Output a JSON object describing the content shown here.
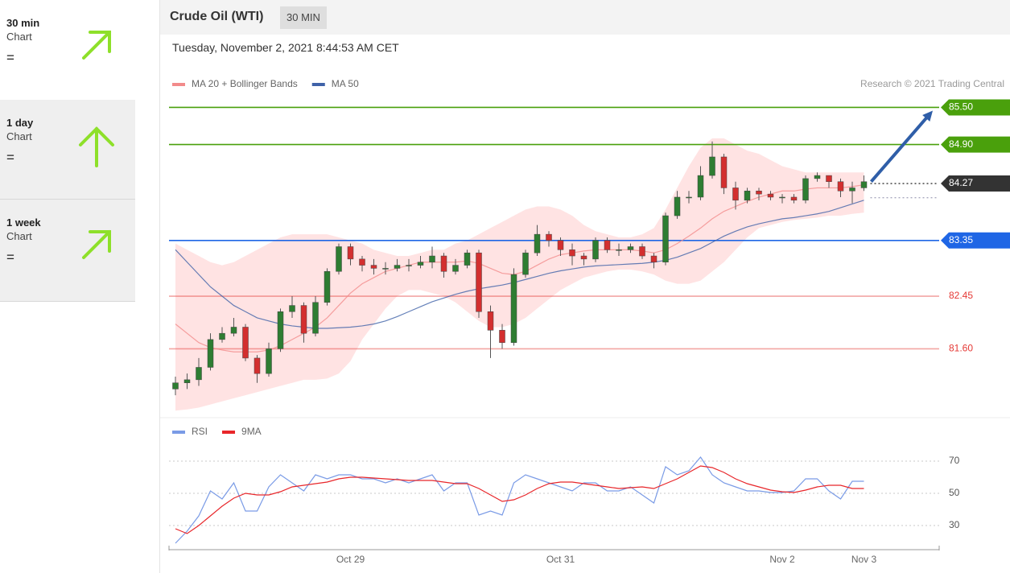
{
  "sidebar": [
    {
      "period": "30 min",
      "label": "Chart",
      "signal": "="
    },
    {
      "period": "1 day",
      "label": "Chart",
      "signal": "="
    },
    {
      "period": "1 week",
      "label": "Chart",
      "signal": "="
    }
  ],
  "header": {
    "title": "Crude Oil (WTI)",
    "interval": "30 MIN",
    "timestamp": "Tuesday, November 2, 2021 8:44:53 AM CET"
  },
  "chart_data": [
    {
      "type": "candlestick",
      "source": "Research © 2021 Trading Central",
      "up_color": "#2e7d32",
      "down_color": "#d32f2f",
      "open": [
        80.95,
        81.05,
        81.1,
        81.3,
        81.75,
        81.85,
        81.95,
        81.45,
        81.2,
        81.6,
        82.2,
        82.3,
        81.85,
        82.35,
        82.85,
        83.25,
        83.05,
        82.95,
        82.9,
        82.9,
        82.95,
        82.95,
        83.0,
        83.1,
        82.85,
        82.95,
        83.15,
        82.2,
        81.9,
        81.7,
        82.8,
        83.15,
        83.45,
        83.35,
        83.2,
        83.1,
        83.05,
        83.35,
        83.2,
        83.2,
        83.25,
        83.1,
        83.0,
        83.75,
        84.05,
        84.05,
        84.4,
        84.7,
        84.2,
        84.0,
        84.15,
        84.1,
        84.05,
        84.05,
        84.0,
        84.35,
        84.4,
        84.3,
        84.15,
        84.2
      ],
      "high": [
        81.15,
        81.2,
        81.45,
        81.85,
        81.95,
        82.1,
        82.0,
        81.5,
        81.7,
        82.25,
        82.45,
        82.35,
        82.45,
        82.9,
        83.3,
        83.3,
        83.1,
        83.05,
        83.0,
        83.05,
        83.05,
        83.1,
        83.25,
        83.15,
        83.05,
        83.2,
        83.2,
        82.3,
        82.0,
        82.9,
        83.2,
        83.6,
        83.5,
        83.4,
        83.3,
        83.15,
        83.4,
        83.4,
        83.3,
        83.3,
        83.3,
        83.15,
        83.8,
        84.15,
        84.15,
        84.55,
        84.95,
        84.75,
        84.3,
        84.2,
        84.2,
        84.15,
        84.1,
        84.1,
        84.4,
        84.45,
        84.4,
        84.35,
        84.3,
        84.4
      ],
      "low": [
        80.85,
        80.95,
        81.0,
        81.25,
        81.7,
        81.8,
        81.4,
        81.05,
        81.15,
        81.55,
        82.1,
        81.7,
        81.8,
        82.3,
        82.8,
        82.95,
        82.85,
        82.8,
        82.8,
        82.85,
        82.85,
        82.9,
        82.9,
        82.75,
        82.8,
        82.9,
        82.1,
        81.45,
        81.6,
        81.65,
        82.75,
        83.1,
        83.25,
        83.1,
        82.95,
        82.95,
        83.0,
        83.15,
        83.1,
        83.15,
        83.05,
        82.9,
        82.95,
        83.7,
        83.95,
        84.0,
        84.35,
        84.1,
        83.85,
        83.95,
        84.0,
        84.0,
        83.95,
        83.95,
        83.95,
        84.3,
        84.2,
        84.05,
        83.95,
        84.15
      ],
      "close": [
        81.05,
        81.1,
        81.3,
        81.75,
        81.85,
        81.95,
        81.45,
        81.2,
        81.6,
        82.2,
        82.3,
        81.85,
        82.35,
        82.85,
        83.25,
        83.05,
        82.95,
        82.9,
        82.9,
        82.95,
        82.95,
        83.0,
        83.1,
        82.85,
        82.95,
        83.15,
        82.2,
        81.9,
        81.7,
        82.8,
        83.15,
        83.45,
        83.35,
        83.2,
        83.1,
        83.05,
        83.35,
        83.2,
        83.2,
        83.25,
        83.1,
        83.0,
        83.75,
        84.05,
        84.05,
        84.4,
        84.7,
        84.2,
        84.0,
        84.15,
        84.1,
        84.05,
        84.05,
        84.0,
        84.35,
        84.4,
        84.3,
        84.15,
        84.2,
        84.3
      ],
      "series": [
        {
          "name": "MA 20 + Bollinger Bands",
          "color": "#f28b8b",
          "values": [
            82.0,
            81.85,
            81.7,
            81.62,
            81.58,
            81.55,
            81.55,
            81.55,
            81.58,
            81.65,
            81.75,
            81.85,
            81.95,
            82.1,
            82.3,
            82.5,
            82.65,
            82.75,
            82.85,
            82.9,
            82.95,
            83.0,
            83.0,
            83.0,
            83.0,
            83.02,
            82.98,
            82.9,
            82.82,
            82.8,
            82.85,
            82.95,
            83.05,
            83.12,
            83.15,
            83.18,
            83.2,
            83.2,
            83.2,
            83.2,
            83.18,
            83.15,
            83.2,
            83.3,
            83.42,
            83.55,
            83.7,
            83.82,
            83.9,
            83.98,
            84.05,
            84.1,
            84.15,
            84.15,
            84.18,
            84.2,
            84.2,
            84.2,
            84.22,
            84.25
          ]
        },
        {
          "name": "MA 50",
          "color": "#3f62a8",
          "values": [
            83.2,
            83.0,
            82.8,
            82.6,
            82.45,
            82.3,
            82.2,
            82.1,
            82.05,
            82.0,
            81.97,
            81.95,
            81.93,
            81.93,
            81.94,
            81.95,
            81.97,
            82.0,
            82.05,
            82.12,
            82.2,
            82.28,
            82.36,
            82.42,
            82.48,
            82.53,
            82.57,
            82.6,
            82.63,
            82.67,
            82.72,
            82.77,
            82.82,
            82.86,
            82.89,
            82.92,
            82.94,
            82.95,
            82.96,
            82.97,
            82.98,
            83.0,
            83.03,
            83.08,
            83.15,
            83.22,
            83.32,
            83.42,
            83.5,
            83.57,
            83.62,
            83.66,
            83.7,
            83.72,
            83.75,
            83.78,
            83.82,
            83.88,
            83.94,
            84.0
          ]
        }
      ],
      "bands": {
        "color": "#ff9a9a",
        "upper": [
          83.3,
          83.2,
          83.1,
          83.0,
          82.95,
          83.0,
          83.1,
          83.2,
          83.3,
          83.4,
          83.45,
          83.45,
          83.45,
          83.45,
          83.4,
          83.35,
          83.3,
          83.2,
          83.15,
          83.1,
          83.1,
          83.15,
          83.2,
          83.2,
          83.3,
          83.35,
          83.45,
          83.55,
          83.65,
          83.75,
          83.85,
          83.9,
          83.9,
          83.85,
          83.75,
          83.6,
          83.5,
          83.45,
          83.4,
          83.4,
          83.45,
          83.55,
          83.85,
          84.2,
          84.55,
          84.85,
          85.0,
          85.0,
          84.9,
          84.8,
          84.75,
          84.65,
          84.55,
          84.5,
          84.45,
          84.45,
          84.45,
          84.45,
          84.45,
          84.45
        ],
        "lower": [
          80.6,
          80.62,
          80.65,
          80.7,
          80.75,
          80.8,
          80.85,
          80.9,
          80.95,
          81.0,
          81.05,
          81.1,
          81.1,
          81.12,
          81.2,
          81.4,
          81.75,
          82.0,
          82.25,
          82.45,
          82.55,
          82.55,
          82.5,
          82.45,
          82.35,
          82.2,
          82.05,
          81.95,
          81.95,
          82.0,
          82.1,
          82.25,
          82.4,
          82.55,
          82.65,
          82.75,
          82.8,
          82.85,
          82.88,
          82.88,
          82.85,
          82.8,
          82.7,
          82.65,
          82.65,
          82.7,
          82.85,
          83.0,
          83.2,
          83.4,
          83.55,
          83.6,
          83.65,
          83.68,
          83.7,
          83.72,
          83.75,
          83.75,
          83.78,
          83.8
        ]
      },
      "levels": {
        "values": [
          85.5,
          84.9,
          84.27,
          83.35,
          82.45,
          81.6
        ],
        "value_labels": [
          "85.50",
          "84.90",
          "84.27",
          "83.35",
          "82.45",
          "81.60"
        ],
        "colors": [
          "#4aa00c",
          "#4aa00c",
          "#333333",
          "#1f66e5",
          "#e53935",
          "#e53935"
        ],
        "styles": [
          "solid",
          "solid",
          "dotted",
          "solid",
          "solid",
          "solid"
        ],
        "tag": [
          true,
          true,
          true,
          true,
          false,
          false
        ]
      },
      "guide_lines": [
        84.04
      ],
      "ylim": [
        80.5,
        86.0
      ]
    },
    {
      "type": "line",
      "categories": [
        null,
        null,
        null,
        null,
        null,
        null,
        null,
        null,
        null,
        null,
        null,
        null,
        null,
        null,
        null,
        "Oct 29",
        null,
        null,
        null,
        null,
        null,
        null,
        null,
        null,
        null,
        null,
        null,
        null,
        null,
        null,
        null,
        null,
        null,
        "Oct 31",
        null,
        null,
        null,
        null,
        null,
        null,
        null,
        null,
        null,
        null,
        null,
        null,
        null,
        null,
        null,
        null,
        null,
        null,
        "Nov 2",
        null,
        null,
        null,
        null,
        null,
        null,
        "Nov 3"
      ],
      "series": [
        {
          "name": "RSI",
          "color": "#7a9be6",
          "values": [
            19,
            26.5,
            36,
            51.5,
            46.5,
            56.5,
            39,
            39,
            54,
            61.5,
            56.5,
            51.5,
            61.5,
            59,
            61.5,
            61.5,
            59,
            59,
            56.5,
            59,
            56.5,
            59,
            61.5,
            51.5,
            56.5,
            56.5,
            36.5,
            39,
            36.5,
            56.5,
            61.5,
            59,
            56.5,
            54,
            51.5,
            56.5,
            56.5,
            51.5,
            51.5,
            54,
            49,
            44,
            66.5,
            61.5,
            64,
            72.5,
            61.5,
            56.5,
            54,
            51.5,
            51.5,
            50.5,
            50.5,
            51.5,
            59,
            59,
            51.5,
            46.5,
            57.5,
            57.5
          ]
        },
        {
          "name": "9MA",
          "color": "#e8262a",
          "values": [
            28,
            25,
            30,
            36,
            42,
            47,
            50,
            49,
            49,
            51,
            54,
            55,
            56,
            57,
            59,
            60,
            60,
            59.5,
            59,
            58.5,
            58,
            58,
            58,
            57,
            56,
            56,
            53,
            49,
            45,
            46,
            49,
            53,
            56,
            57,
            57,
            56,
            55,
            54,
            53,
            53.5,
            54,
            53,
            56,
            59,
            63,
            67,
            66,
            63,
            59,
            56,
            54,
            52,
            51,
            50.5,
            52,
            54,
            55,
            55,
            53,
            53
          ]
        }
      ],
      "ylim": [
        15,
        95
      ],
      "yticks": [
        30,
        50,
        70
      ],
      "grid": "dotted"
    }
  ]
}
